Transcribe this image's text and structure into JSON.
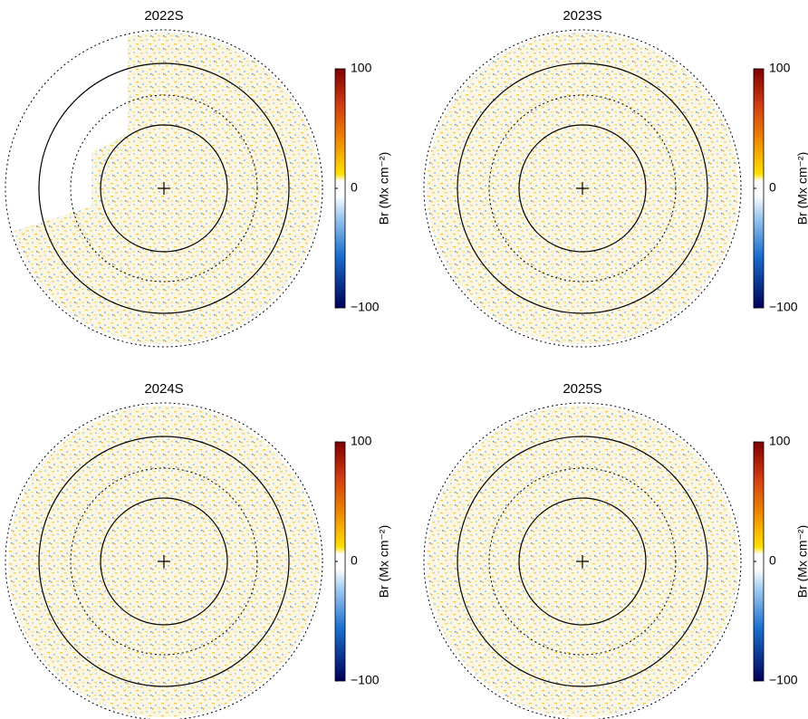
{
  "chart_data": [
    {
      "type": "heatmap",
      "title": "2022S",
      "clim": [
        -100,
        100
      ],
      "cticks": [
        100,
        0,
        {
          "value": -100,
          "label": "−100"
        }
      ],
      "colorbar_label": "Br (Mx cm⁻²)"
    },
    {
      "type": "heatmap",
      "title": "2023S",
      "clim": [
        -100,
        100
      ],
      "cticks": [
        100,
        0,
        {
          "value": -100,
          "label": "−100"
        }
      ],
      "colorbar_label": "Br (Mx cm⁻²)"
    },
    {
      "type": "heatmap",
      "title": "2024S",
      "clim": [
        -100,
        100
      ],
      "cticks": [
        100,
        0,
        {
          "value": -100,
          "label": "−100"
        }
      ],
      "colorbar_label": "Br (Mx cm⁻²)"
    },
    {
      "type": "heatmap",
      "title": "2025S",
      "clim": [
        -100,
        100
      ],
      "cticks": [
        100,
        0,
        {
          "value": -100,
          "label": "−100"
        }
      ],
      "colorbar_label": "Br (Mx cm⁻²)"
    }
  ]
}
